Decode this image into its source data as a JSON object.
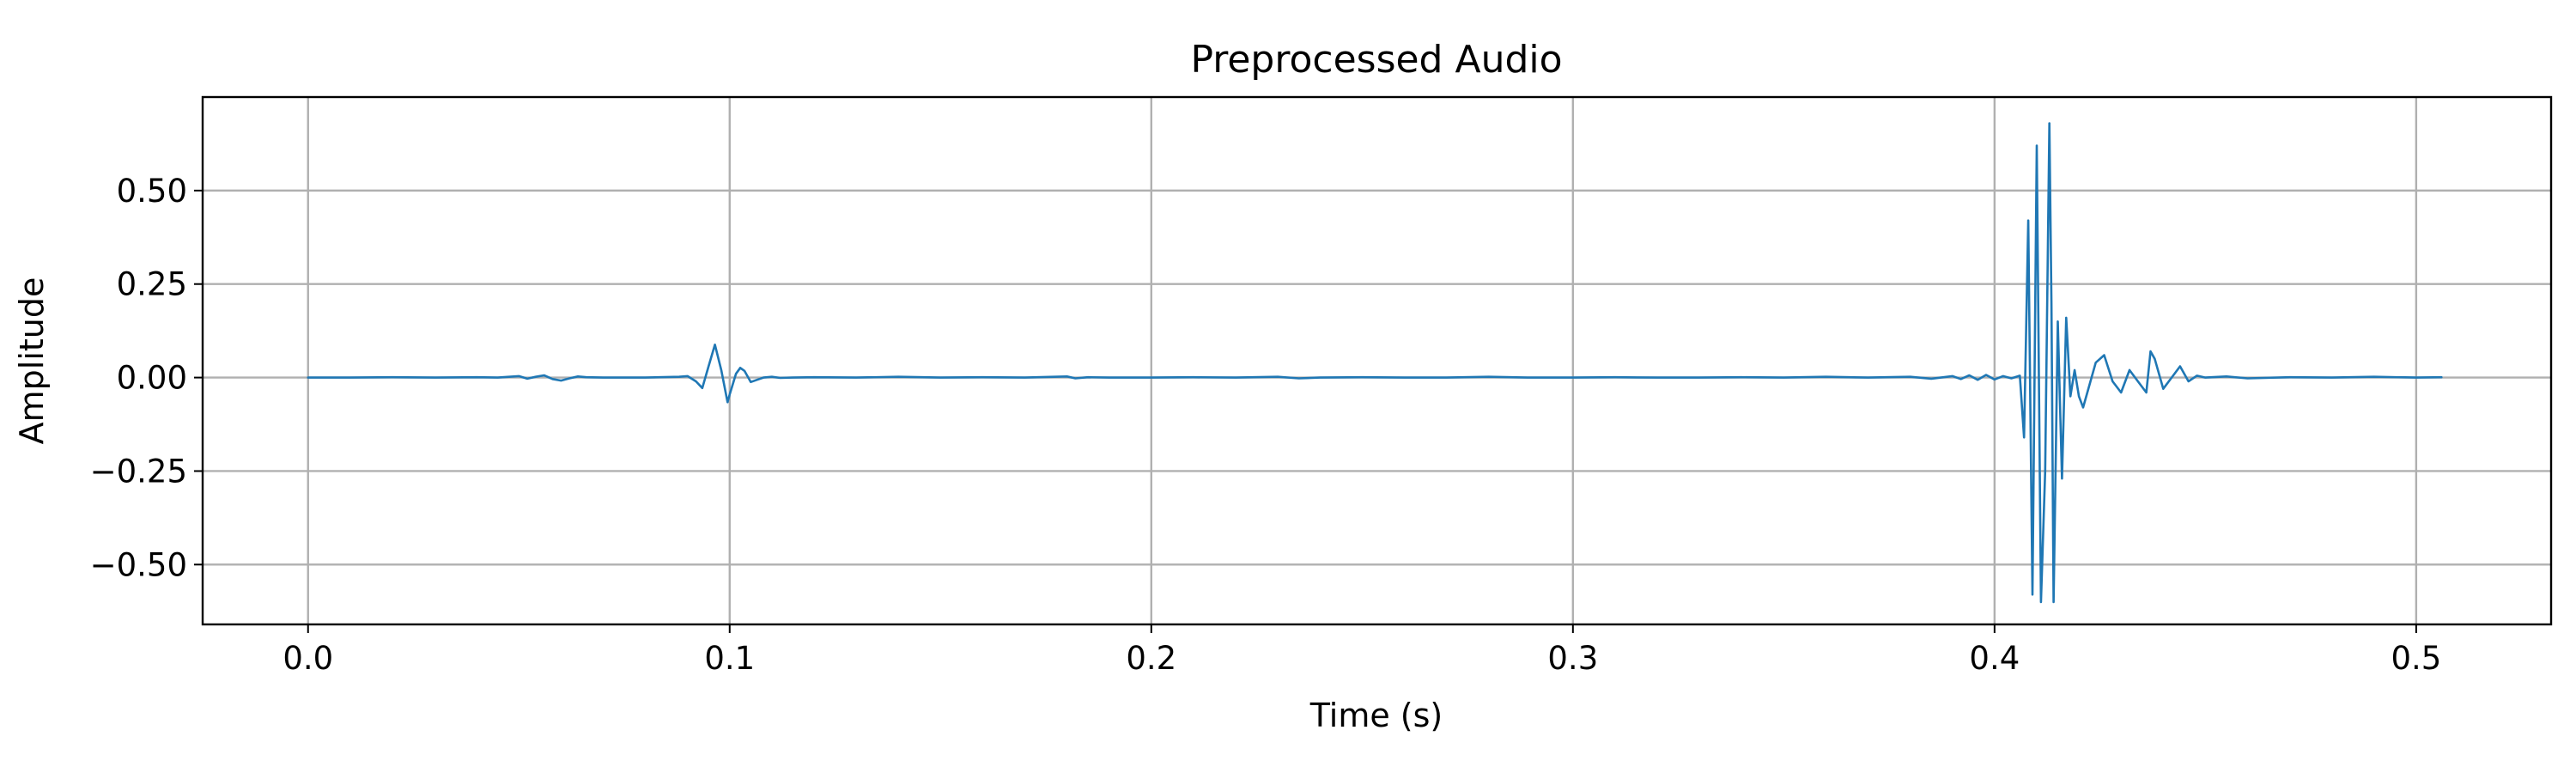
{
  "chart_data": {
    "type": "line",
    "title": "Preprocessed Audio",
    "xlabel": "Time (s)",
    "ylabel": "Amplitude",
    "xlim": [
      -0.025,
      0.532
    ],
    "ylim": [
      -0.66,
      0.75
    ],
    "x_ticks": [
      0.0,
      0.1,
      0.2,
      0.3,
      0.4,
      0.5
    ],
    "x_tick_labels": [
      "0.0",
      "0.1",
      "0.2",
      "0.3",
      "0.4",
      "0.5"
    ],
    "y_ticks": [
      0.5,
      0.25,
      0.0,
      -0.25,
      -0.5
    ],
    "y_tick_labels": [
      "0.50",
      "0.25",
      "0.00",
      "−0.25",
      "−0.50"
    ],
    "grid": true,
    "series": [
      {
        "color": "#1f77b4",
        "x": [
          0.0,
          0.01,
          0.02,
          0.03,
          0.04,
          0.045,
          0.05,
          0.052,
          0.054,
          0.056,
          0.058,
          0.06,
          0.062,
          0.064,
          0.066,
          0.07,
          0.08,
          0.088,
          0.09,
          0.092,
          0.0935,
          0.095,
          0.0965,
          0.098,
          0.0995,
          0.1,
          0.1015,
          0.1025,
          0.1035,
          0.105,
          0.1065,
          0.108,
          0.11,
          0.112,
          0.115,
          0.12,
          0.13,
          0.14,
          0.15,
          0.16,
          0.17,
          0.18,
          0.182,
          0.185,
          0.19,
          0.2,
          0.21,
          0.22,
          0.23,
          0.235,
          0.24,
          0.25,
          0.26,
          0.27,
          0.28,
          0.29,
          0.3,
          0.31,
          0.32,
          0.33,
          0.34,
          0.35,
          0.36,
          0.37,
          0.38,
          0.385,
          0.39,
          0.392,
          0.394,
          0.396,
          0.398,
          0.4,
          0.402,
          0.404,
          0.406,
          0.407,
          0.408,
          0.409,
          0.41,
          0.411,
          0.412,
          0.413,
          0.4135,
          0.414,
          0.415,
          0.416,
          0.417,
          0.418,
          0.419,
          0.42,
          0.421,
          0.422,
          0.424,
          0.426,
          0.428,
          0.43,
          0.432,
          0.434,
          0.436,
          0.437,
          0.438,
          0.44,
          0.442,
          0.444,
          0.446,
          0.448,
          0.45,
          0.455,
          0.46,
          0.47,
          0.48,
          0.49,
          0.5,
          0.506
        ],
        "y": [
          0.0,
          0.0,
          0.001,
          0.0,
          0.001,
          0.0,
          0.004,
          -0.003,
          0.002,
          0.006,
          -0.004,
          -0.008,
          -0.002,
          0.003,
          0.001,
          0.0,
          0.0,
          0.002,
          0.004,
          -0.01,
          -0.028,
          0.03,
          0.088,
          0.02,
          -0.066,
          -0.045,
          0.01,
          0.026,
          0.018,
          -0.012,
          -0.006,
          0.0,
          0.002,
          -0.001,
          0.0,
          0.001,
          0.0,
          0.002,
          0.0,
          0.001,
          0.0,
          0.003,
          -0.002,
          0.001,
          0.0,
          0.0,
          0.001,
          0.0,
          0.002,
          -0.002,
          0.0,
          0.001,
          0.0,
          0.0,
          0.002,
          0.0,
          0.0,
          0.001,
          0.0,
          0.0,
          0.001,
          0.0,
          0.002,
          0.0,
          0.002,
          -0.003,
          0.004,
          -0.004,
          0.006,
          -0.006,
          0.007,
          -0.005,
          0.004,
          -0.002,
          0.005,
          -0.16,
          0.42,
          -0.58,
          0.62,
          -0.6,
          -0.25,
          0.68,
          0.2,
          -0.6,
          0.15,
          -0.27,
          0.16,
          -0.05,
          0.02,
          -0.05,
          -0.08,
          -0.04,
          0.04,
          0.06,
          -0.01,
          -0.04,
          0.02,
          -0.01,
          -0.04,
          0.07,
          0.05,
          -0.03,
          0.0,
          0.03,
          -0.01,
          0.005,
          0.0,
          0.003,
          -0.002,
          0.001,
          0.0,
          0.002,
          0.0,
          0.001
        ]
      }
    ]
  }
}
